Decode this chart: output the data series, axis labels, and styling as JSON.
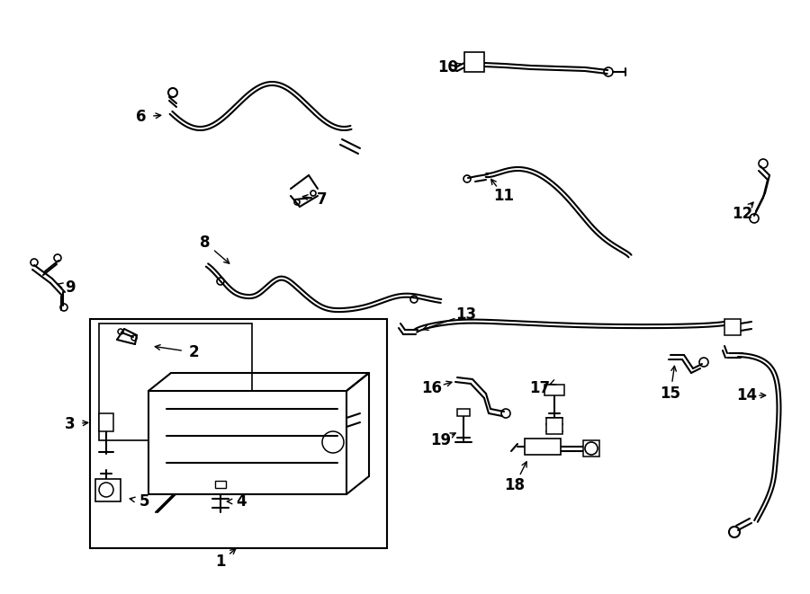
{
  "bg_color": "#ffffff",
  "line_color": "#000000",
  "lw": 1.5,
  "lw_thick": 2.5,
  "figsize": [
    9.0,
    6.61
  ],
  "dpi": 100,
  "label_fontsize": 12,
  "label_fontweight": "bold"
}
